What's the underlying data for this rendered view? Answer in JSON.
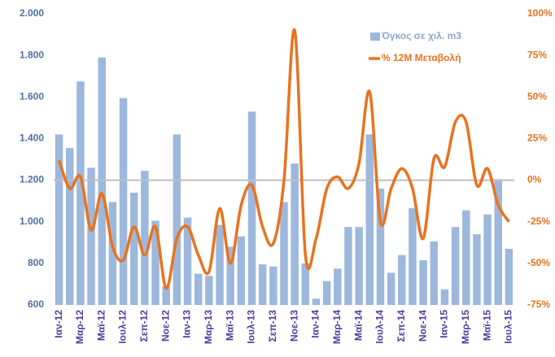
{
  "chart_data": {
    "type": "bar-line",
    "categories": [
      "Ιαν-12",
      null,
      "Μαρ-12",
      null,
      "Μαϊ-12",
      null,
      "Ιουλ-12",
      null,
      "Σεπ-12",
      null,
      "Νοε-12",
      null,
      "Ιαν-13",
      null,
      "Μαρ-13",
      null,
      "Μαϊ-13",
      null,
      "Ιουλ-13",
      null,
      "Σεπ-13",
      null,
      "Νοε-13",
      null,
      "Ιαν-14",
      null,
      "Μαρ-14",
      null,
      "Μαϊ-14",
      null,
      "Ιουλ-14",
      null,
      "Σεπ-14",
      null,
      "Νοε-14",
      null,
      "Ιαν-15",
      null,
      "Μαρ-15",
      null,
      "Μαϊ-15",
      null,
      "Ιουλ-15"
    ],
    "series": [
      {
        "name": "Όγκος σε χιλ. m3",
        "type": "bar",
        "color": "#9db8dc",
        "values": [
          1420,
          1355,
          1675,
          1260,
          1790,
          1095,
          1595,
          1140,
          1245,
          1005,
          690,
          1420,
          1020,
          750,
          740,
          985,
          880,
          930,
          1530,
          795,
          785,
          1095,
          1280,
          800,
          630,
          715,
          775,
          975,
          975,
          1420,
          1160,
          755,
          840,
          1065,
          815,
          905,
          675,
          975,
          1055,
          940,
          1035,
          1205,
          870
        ]
      },
      {
        "name": "% 12Μ Μεταβολή",
        "type": "line",
        "axis": "y2",
        "color": "#e8731f",
        "values": [
          12,
          -5,
          2,
          -30,
          -8,
          -40,
          -48,
          -28,
          -45,
          -28,
          -65,
          -35,
          -28,
          -45,
          -55,
          -17,
          -50,
          -15,
          -3,
          -28,
          -38,
          0,
          90,
          -45,
          -35,
          -5,
          2,
          -5,
          10,
          53,
          -25,
          -5,
          7,
          -5,
          -35,
          13,
          8,
          35,
          35,
          -3,
          7,
          -15,
          -25
        ]
      }
    ],
    "ylim": [
      600,
      2000
    ],
    "yticks": [
      600,
      800,
      {
        "value": 1000,
        "label": "1.000"
      },
      {
        "value": 1200,
        "label": "1.200"
      },
      {
        "value": 1400,
        "label": "1.400"
      },
      {
        "value": 1600,
        "label": "1.600"
      },
      {
        "value": 1800,
        "label": "1.800"
      },
      {
        "value": 2000,
        "label": "2.000"
      }
    ],
    "y2lim": [
      -75,
      100
    ],
    "y2ticks": [
      {
        "value": -75,
        "label": "-75%"
      },
      {
        "value": -50,
        "label": "-50%"
      },
      {
        "value": -25,
        "label": "-25%"
      },
      {
        "value": 0,
        "label": "0%"
      },
      {
        "value": 25,
        "label": "25%"
      },
      {
        "value": 50,
        "label": "50%"
      },
      {
        "value": 75,
        "label": "75%"
      },
      {
        "value": 100,
        "label": "100%"
      }
    ],
    "legend": "upper right"
  }
}
